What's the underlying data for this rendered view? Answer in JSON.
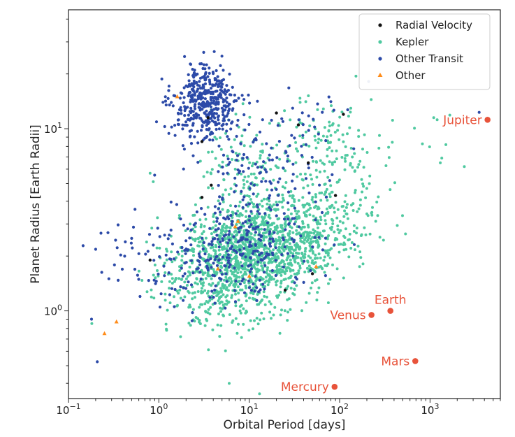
{
  "chart_data": {
    "type": "scatter",
    "title": "",
    "xlabel": "Orbital Period [days]",
    "ylabel": "Planet Radius [Earth Radii]",
    "xscale": "log",
    "yscale": "log",
    "xlim": [
      0.1,
      6000
    ],
    "ylim": [
      0.33,
      45
    ],
    "grid": false,
    "legend_position": "top-right",
    "x_ticks": [
      {
        "value": 0.1,
        "base": "10",
        "exp": "−1"
      },
      {
        "value": 1,
        "base": "10",
        "exp": "0"
      },
      {
        "value": 10,
        "base": "10",
        "exp": "1"
      },
      {
        "value": 100,
        "base": "10",
        "exp": "2"
      },
      {
        "value": 1000,
        "base": "10",
        "exp": "3"
      }
    ],
    "y_ticks": [
      {
        "value": 1,
        "base": "10",
        "exp": "0"
      },
      {
        "value": 10,
        "base": "10",
        "exp": "1"
      }
    ],
    "series": [
      {
        "name": "Radial Velocity",
        "color": "#111111",
        "marker": "circle",
        "points": [
          [
            3.5,
            11.5
          ],
          [
            20,
            12.2
          ],
          [
            35,
            10.5
          ],
          [
            45,
            6.5
          ],
          [
            3,
            8.5
          ],
          [
            3,
            4.2
          ],
          [
            0.8,
            1.9
          ],
          [
            50,
            1.6
          ],
          [
            25,
            1.3
          ],
          [
            110,
            12.0
          ],
          [
            90,
            4.3
          ],
          [
            3.8,
            4.9
          ]
        ]
      },
      {
        "name": "Kepler",
        "color": "#4fc9a0",
        "marker": "circle",
        "generated": true
      },
      {
        "name": "Other Transit",
        "color": "#2c4aa8",
        "marker": "circle",
        "generated": true
      },
      {
        "name": "Other",
        "color": "#ff8c1a",
        "marker": "triangle",
        "points": [
          [
            0.25,
            0.75
          ],
          [
            0.34,
            0.87
          ],
          [
            1.6,
            15.0
          ],
          [
            7,
            2.9
          ],
          [
            7.5,
            3.1
          ],
          [
            10,
            1.55
          ],
          [
            55,
            1.75
          ],
          [
            4.5,
            1.7
          ]
        ]
      }
    ],
    "solar_system": {
      "color": "#e8533a",
      "planets": [
        {
          "name": "Mercury",
          "x": 88,
          "y": 0.383,
          "label_side": "left"
        },
        {
          "name": "Venus",
          "x": 225,
          "y": 0.95,
          "label_side": "left"
        },
        {
          "name": "Earth",
          "x": 365,
          "y": 1.0,
          "label_side": "above"
        },
        {
          "name": "Mars",
          "x": 687,
          "y": 0.53,
          "label_side": "left"
        },
        {
          "name": "Jupiter",
          "x": 4333,
          "y": 11.2,
          "label_side": "left"
        }
      ]
    }
  }
}
